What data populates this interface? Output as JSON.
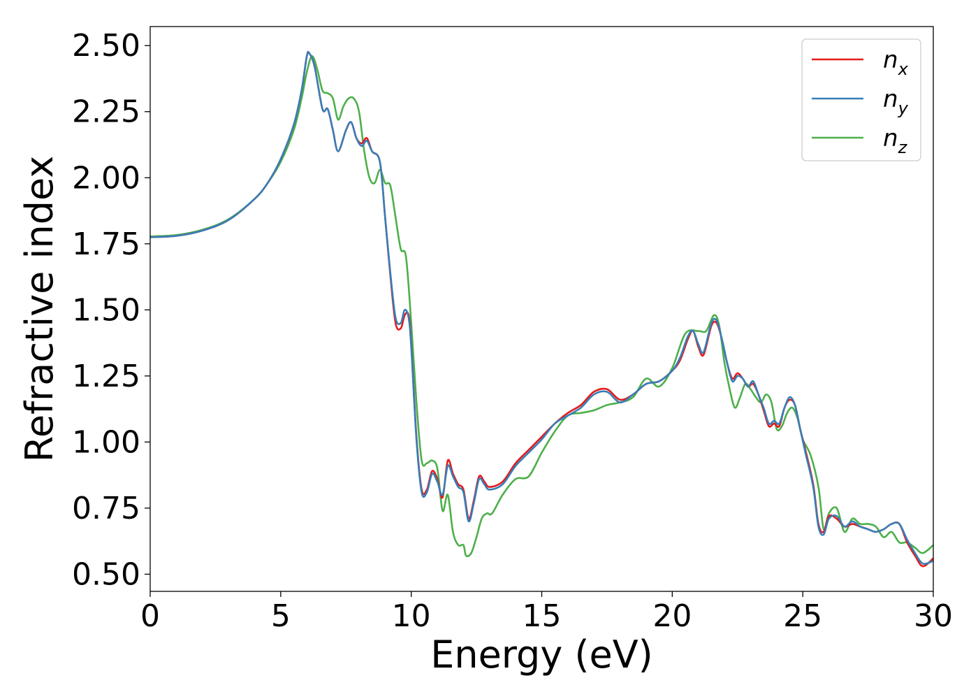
{
  "chart_data": {
    "type": "line",
    "xlabel": "Energy (eV)",
    "ylabel": "Refractive index",
    "xlim": [
      0,
      30
    ],
    "ylim": [
      0.435,
      2.572
    ],
    "x_ticks": [
      "0",
      "5",
      "10",
      "15",
      "20",
      "25",
      "30"
    ],
    "x_tick_values": [
      0,
      5,
      10,
      15,
      20,
      25,
      30
    ],
    "y_ticks": [
      "0.50",
      "0.75",
      "1.00",
      "1.25",
      "1.50",
      "1.75",
      "2.00",
      "2.25",
      "2.50"
    ],
    "y_tick_values": [
      0.5,
      0.75,
      1.0,
      1.25,
      1.5,
      1.75,
      2.0,
      2.25,
      2.5
    ],
    "grid": false,
    "legend_position": "top-right",
    "series": [
      {
        "name": "n",
        "subscript": "x",
        "color": "#e41a1c",
        "x": [
          0,
          1,
          2,
          3,
          4,
          4.5,
          5,
          5.5,
          5.8,
          6.0,
          6.1,
          6.3,
          6.6,
          6.8,
          7.0,
          7.2,
          7.5,
          7.7,
          7.9,
          8.1,
          8.3,
          8.5,
          8.8,
          9.0,
          9.2,
          9.4,
          9.6,
          9.75,
          9.9,
          10.0,
          10.2,
          10.4,
          10.6,
          10.8,
          11.0,
          11.2,
          11.4,
          11.6,
          11.8,
          12.0,
          12.2,
          12.4,
          12.6,
          12.8,
          13.0,
          13.5,
          14.0,
          14.5,
          15.0,
          15.5,
          16.0,
          16.5,
          17.0,
          17.5,
          18.0,
          18.5,
          19.0,
          19.5,
          20.0,
          20.3,
          20.6,
          20.8,
          21.0,
          21.2,
          21.5,
          21.7,
          21.9,
          22.1,
          22.3,
          22.5,
          22.7,
          22.9,
          23.1,
          23.3,
          23.5,
          23.7,
          23.9,
          24.1,
          24.3,
          24.5,
          24.7,
          24.9,
          25.1,
          25.4,
          25.6,
          25.8,
          26.0,
          26.3,
          26.6,
          26.9,
          27.2,
          27.5,
          27.8,
          28.1,
          28.4,
          28.7,
          29.0,
          29.3,
          29.6,
          30.0
        ],
        "y": [
          1.775,
          1.78,
          1.8,
          1.84,
          1.92,
          1.98,
          2.07,
          2.2,
          2.33,
          2.46,
          2.47,
          2.42,
          2.26,
          2.26,
          2.18,
          2.1,
          2.18,
          2.21,
          2.15,
          2.13,
          2.15,
          2.1,
          2.06,
          1.85,
          1.63,
          1.45,
          1.43,
          1.48,
          1.48,
          1.37,
          1.02,
          0.82,
          0.82,
          0.89,
          0.86,
          0.79,
          0.93,
          0.88,
          0.84,
          0.82,
          0.71,
          0.78,
          0.87,
          0.85,
          0.83,
          0.85,
          0.92,
          0.97,
          1.02,
          1.07,
          1.11,
          1.14,
          1.19,
          1.2,
          1.16,
          1.18,
          1.22,
          1.23,
          1.27,
          1.31,
          1.39,
          1.42,
          1.36,
          1.33,
          1.44,
          1.45,
          1.39,
          1.3,
          1.24,
          1.26,
          1.24,
          1.21,
          1.22,
          1.18,
          1.12,
          1.06,
          1.07,
          1.06,
          1.13,
          1.16,
          1.14,
          1.05,
          0.97,
          0.84,
          0.69,
          0.66,
          0.72,
          0.71,
          0.68,
          0.69,
          0.68,
          0.67,
          0.66,
          0.67,
          0.69,
          0.69,
          0.62,
          0.57,
          0.53,
          0.56
        ]
      },
      {
        "name": "n",
        "subscript": "y",
        "color": "#377eb8",
        "x": [
          0,
          1,
          2,
          3,
          4,
          4.5,
          5,
          5.5,
          5.8,
          6.0,
          6.1,
          6.3,
          6.6,
          6.8,
          7.0,
          7.2,
          7.5,
          7.7,
          7.9,
          8.1,
          8.3,
          8.5,
          8.8,
          9.0,
          9.2,
          9.4,
          9.6,
          9.75,
          9.9,
          10.0,
          10.2,
          10.4,
          10.6,
          10.8,
          11.0,
          11.2,
          11.4,
          11.6,
          11.8,
          12.0,
          12.2,
          12.4,
          12.6,
          12.8,
          13.0,
          13.5,
          14.0,
          14.5,
          15.0,
          15.5,
          16.0,
          16.5,
          17.0,
          17.5,
          18.0,
          18.5,
          19.0,
          19.5,
          20.0,
          20.3,
          20.6,
          20.8,
          21.0,
          21.2,
          21.5,
          21.7,
          21.9,
          22.1,
          22.3,
          22.5,
          22.7,
          22.9,
          23.1,
          23.3,
          23.5,
          23.7,
          23.9,
          24.1,
          24.3,
          24.5,
          24.7,
          24.9,
          25.1,
          25.4,
          25.6,
          25.8,
          26.0,
          26.3,
          26.6,
          26.9,
          27.2,
          27.5,
          27.8,
          28.1,
          28.4,
          28.7,
          29.0,
          29.3,
          29.6,
          30.0
        ],
        "y": [
          1.775,
          1.78,
          1.8,
          1.84,
          1.92,
          1.98,
          2.07,
          2.2,
          2.33,
          2.46,
          2.47,
          2.42,
          2.26,
          2.26,
          2.18,
          2.1,
          2.18,
          2.21,
          2.15,
          2.12,
          2.14,
          2.1,
          2.06,
          1.85,
          1.64,
          1.47,
          1.45,
          1.5,
          1.47,
          1.36,
          1.01,
          0.81,
          0.81,
          0.88,
          0.85,
          0.8,
          0.91,
          0.87,
          0.83,
          0.81,
          0.7,
          0.77,
          0.86,
          0.84,
          0.82,
          0.84,
          0.91,
          0.96,
          1.01,
          1.07,
          1.1,
          1.13,
          1.18,
          1.19,
          1.15,
          1.18,
          1.22,
          1.23,
          1.27,
          1.32,
          1.4,
          1.42,
          1.37,
          1.34,
          1.45,
          1.46,
          1.39,
          1.3,
          1.23,
          1.25,
          1.24,
          1.21,
          1.23,
          1.18,
          1.13,
          1.07,
          1.08,
          1.07,
          1.13,
          1.17,
          1.14,
          1.05,
          0.96,
          0.83,
          0.68,
          0.65,
          0.71,
          0.72,
          0.68,
          0.7,
          0.68,
          0.67,
          0.66,
          0.67,
          0.69,
          0.69,
          0.63,
          0.58,
          0.54,
          0.55
        ]
      },
      {
        "name": "n",
        "subscript": "z",
        "color": "#4daf4a",
        "x": [
          0,
          1,
          2,
          3,
          4,
          4.5,
          5,
          5.5,
          5.8,
          6.0,
          6.2,
          6.4,
          6.6,
          6.8,
          7.0,
          7.2,
          7.4,
          7.6,
          7.8,
          8.0,
          8.2,
          8.4,
          8.6,
          8.8,
          9.0,
          9.2,
          9.4,
          9.6,
          9.8,
          10.0,
          10.2,
          10.4,
          10.6,
          10.8,
          11.0,
          11.2,
          11.4,
          11.6,
          11.8,
          12.0,
          12.1,
          12.3,
          12.5,
          12.7,
          12.9,
          13.1,
          13.5,
          14.0,
          14.5,
          15.0,
          15.5,
          16.0,
          16.5,
          17.0,
          17.5,
          18.0,
          18.5,
          19.0,
          19.5,
          20.0,
          20.5,
          21.0,
          21.3,
          21.6,
          21.8,
          22.0,
          22.2,
          22.4,
          22.6,
          22.8,
          23.0,
          23.2,
          23.4,
          23.6,
          23.8,
          24.0,
          24.2,
          24.4,
          24.6,
          24.8,
          25.0,
          25.3,
          25.6,
          25.8,
          26.0,
          26.3,
          26.6,
          26.9,
          27.2,
          27.5,
          27.8,
          28.1,
          28.4,
          28.7,
          29.0,
          29.3,
          29.6,
          30.0
        ],
        "y": [
          1.778,
          1.783,
          1.803,
          1.843,
          1.92,
          1.98,
          2.06,
          2.18,
          2.3,
          2.4,
          2.46,
          2.41,
          2.33,
          2.32,
          2.3,
          2.22,
          2.27,
          2.3,
          2.3,
          2.25,
          2.1,
          2.0,
          1.98,
          2.03,
          1.98,
          1.97,
          1.85,
          1.73,
          1.7,
          1.45,
          1.15,
          0.93,
          0.92,
          0.93,
          0.9,
          0.74,
          0.8,
          0.66,
          0.61,
          0.61,
          0.57,
          0.58,
          0.64,
          0.71,
          0.73,
          0.73,
          0.8,
          0.86,
          0.87,
          0.96,
          1.04,
          1.1,
          1.11,
          1.12,
          1.14,
          1.15,
          1.17,
          1.24,
          1.21,
          1.28,
          1.41,
          1.42,
          1.42,
          1.48,
          1.44,
          1.3,
          1.2,
          1.13,
          1.17,
          1.22,
          1.2,
          1.17,
          1.15,
          1.18,
          1.15,
          1.05,
          1.06,
          1.11,
          1.13,
          1.09,
          1.01,
          0.95,
          0.83,
          0.67,
          0.73,
          0.75,
          0.66,
          0.71,
          0.69,
          0.69,
          0.68,
          0.64,
          0.66,
          0.62,
          0.62,
          0.6,
          0.58,
          0.61
        ]
      }
    ]
  }
}
